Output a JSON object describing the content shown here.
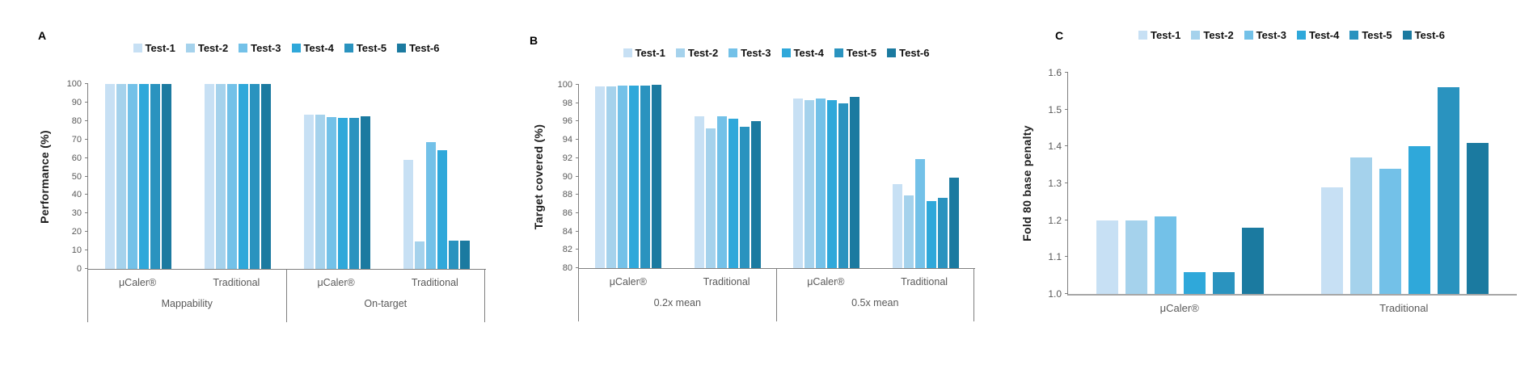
{
  "legend": {
    "items": [
      {
        "label": "Test-1",
        "color": "#c7e0f4"
      },
      {
        "label": "Test-2",
        "color": "#a5d2ec"
      },
      {
        "label": "Test-3",
        "color": "#73c1e8"
      },
      {
        "label": "Test-4",
        "color": "#2fa8da"
      },
      {
        "label": "Test-5",
        "color": "#2a93bf"
      },
      {
        "label": "Test-6",
        "color": "#1b7aa0"
      }
    ],
    "position": "top"
  },
  "chart_data": [
    {
      "type": "bar",
      "panel_label": "A",
      "ylabel": "Performance (%)",
      "ylim": [
        0,
        100
      ],
      "yticks": [
        "0",
        "10",
        "20",
        "30",
        "40",
        "50",
        "60",
        "70",
        "80",
        "90",
        "100"
      ],
      "grid": false,
      "legend_position": "top",
      "two_level_x": true,
      "series_names": [
        "Test-1",
        "Test-2",
        "Test-3",
        "Test-4",
        "Test-5",
        "Test-6"
      ],
      "sections": [
        {
          "label": "Mappability",
          "categories": [
            {
              "label": "μCaler®",
              "values": [
                100,
                100,
                100,
                100,
                100,
                100
              ]
            },
            {
              "label": "Traditional",
              "values": [
                100,
                100,
                100,
                100,
                100,
                100
              ]
            }
          ]
        },
        {
          "label": "On-target",
          "categories": [
            {
              "label": "μCaler®",
              "values": [
                83.2,
                83.2,
                82.2,
                81.8,
                81.6,
                82.4
              ]
            },
            {
              "label": "Traditional",
              "values": [
                59,
                15,
                68.5,
                64,
                15.5,
                15.5
              ]
            }
          ]
        }
      ]
    },
    {
      "type": "bar",
      "panel_label": "B",
      "ylabel": "Target covered (%)",
      "ylim": [
        80,
        100
      ],
      "yticks": [
        "80",
        "82",
        "84",
        "86",
        "88",
        "90",
        "92",
        "94",
        "96",
        "98",
        "100"
      ],
      "grid": false,
      "legend_position": "top",
      "two_level_x": true,
      "series_names": [
        "Test-1",
        "Test-2",
        "Test-3",
        "Test-4",
        "Test-5",
        "Test-6"
      ],
      "sections": [
        {
          "label": "0.2x mean",
          "categories": [
            {
              "label": "μCaler®",
              "values": [
                99.8,
                99.8,
                99.9,
                99.9,
                99.9,
                100
              ]
            },
            {
              "label": "Traditional",
              "values": [
                96.6,
                95.2,
                96.6,
                96.3,
                95.4,
                96.0
              ]
            }
          ]
        },
        {
          "label": "0.5x mean",
          "categories": [
            {
              "label": "μCaler®",
              "values": [
                98.5,
                98.3,
                98.5,
                98.3,
                98.0,
                98.7
              ]
            },
            {
              "label": "Traditional",
              "values": [
                89.2,
                87.9,
                91.9,
                87.3,
                87.7,
                89.9
              ]
            }
          ]
        }
      ]
    },
    {
      "type": "bar",
      "panel_label": "C",
      "ylabel": "Fold 80 base penalty",
      "ylim": [
        1.0,
        1.6
      ],
      "yticks": [
        "1.0",
        "1.1",
        "1.2",
        "1.3",
        "1.4",
        "1.5",
        "1.6"
      ],
      "grid": false,
      "legend_position": "top",
      "two_level_x": false,
      "series_names": [
        "Test-1",
        "Test-2",
        "Test-3",
        "Test-4",
        "Test-5",
        "Test-6"
      ],
      "sections": [
        {
          "label": "",
          "categories": [
            {
              "label": "μCaler®",
              "values": [
                1.2,
                1.2,
                1.21,
                1.06,
                1.06,
                1.18
              ]
            },
            {
              "label": "Traditional",
              "values": [
                1.29,
                1.37,
                1.34,
                1.4,
                1.56,
                1.41
              ]
            }
          ]
        }
      ]
    }
  ]
}
